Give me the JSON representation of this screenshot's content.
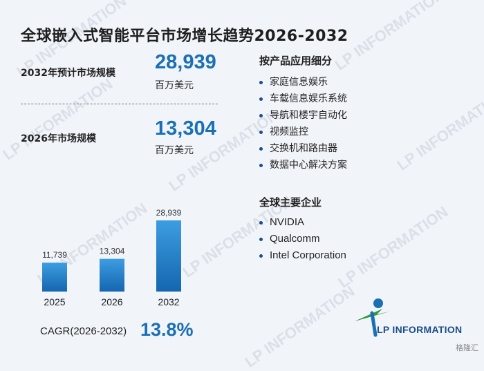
{
  "title": "全球嵌入式智能平台市场增长趋势2026-2032",
  "kpis": [
    {
      "label": "2032年预计市场规模",
      "value": "28,939",
      "unit": "百万美元"
    },
    {
      "label": "2026年市场规模",
      "value": "13,304",
      "unit": "百万美元"
    }
  ],
  "segments": {
    "title": "按产品应用细分",
    "items": [
      "家庭信息娱乐",
      "车载信息娱乐系统",
      "导航和楼宇自动化",
      "视频监控",
      "交换机和路由器",
      "数据中心解决方案"
    ]
  },
  "companies": {
    "title": "全球主要企业",
    "items": [
      "NVIDIA",
      "Qualcomm",
      "Intel Corporation"
    ]
  },
  "cagr": {
    "label": "CAGR(2026-2032)",
    "value": "13.8%"
  },
  "logo": {
    "text": "LP INFORMATION",
    "watermark": "LP INFORMATION"
  },
  "corner_mark": "格隆汇",
  "colors": {
    "accent": "#1a6fb5",
    "bar_top": "#3d9de0",
    "bar_bottom": "#1466b0",
    "logo_green": "#2e9a3c"
  },
  "chart_data": {
    "type": "bar",
    "categories": [
      "2025",
      "2026",
      "2032"
    ],
    "values": [
      11739,
      13304,
      28939
    ],
    "value_labels": [
      "11,739",
      "13,304",
      "28,939"
    ],
    "title": "",
    "xlabel": "",
    "ylabel": "",
    "ylim": [
      0,
      28939
    ],
    "grid": false,
    "legend": "none"
  }
}
